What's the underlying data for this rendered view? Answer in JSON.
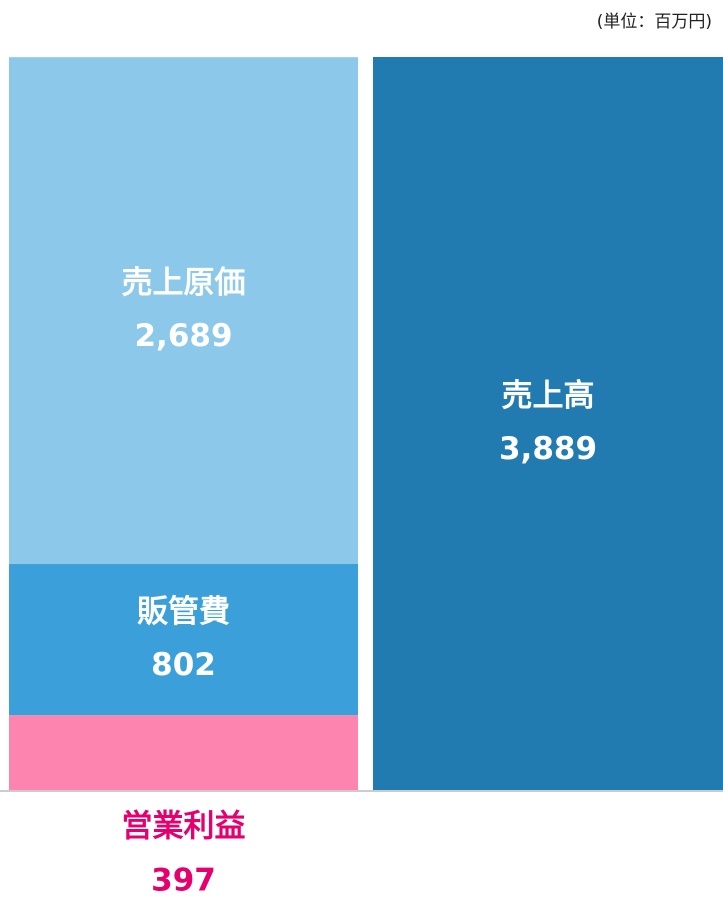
{
  "chart_data": {
    "type": "stacked_bar",
    "unit_note": "(単位：百万円)",
    "categories": [
      null,
      null
    ],
    "series": [
      {
        "name": "営業利益",
        "color": "#fd84ae",
        "label_color": "#e6006e",
        "values": [
          397,
          null
        ],
        "value_labels": [
          "397",
          null
        ]
      },
      {
        "name": "販管費",
        "color": "#3ba0da",
        "label_color": "#ffffff",
        "values": [
          802,
          null
        ],
        "value_labels": [
          "802",
          null
        ]
      },
      {
        "name": "売上原価",
        "color": "#8cc8ea",
        "label_color": "#ffffff",
        "values": [
          2689,
          null
        ],
        "value_labels": [
          "2,689",
          null
        ]
      },
      {
        "name": "売上高",
        "color": "#217bb0",
        "label_color": "#ffffff",
        "values": [
          null,
          3889
        ],
        "value_labels": [
          null,
          "3,889"
        ]
      }
    ]
  }
}
